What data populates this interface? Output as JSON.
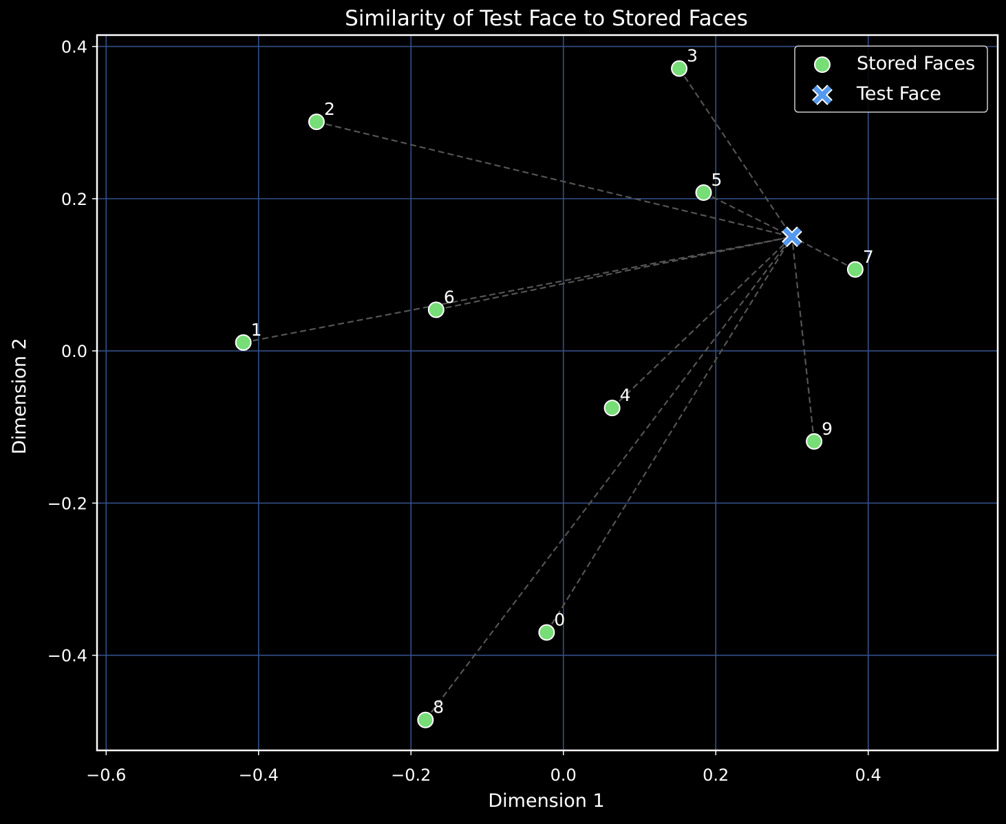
{
  "chart_data": {
    "type": "scatter",
    "title": "Similarity of Test Face to Stored Faces",
    "xlabel": "Dimension 1",
    "ylabel": "Dimension 2",
    "xlim": [
      -0.612,
      0.57
    ],
    "ylim": [
      -0.525,
      0.415
    ],
    "x_ticks": [
      -0.6,
      -0.4,
      -0.2,
      0.0,
      0.2,
      0.4
    ],
    "x_tick_labels": [
      "−0.6",
      "−0.4",
      "−0.2",
      "0.0",
      "0.2",
      "0.4"
    ],
    "y_ticks": [
      -0.4,
      -0.2,
      0.0,
      0.2,
      0.4
    ],
    "y_tick_labels": [
      "−0.4",
      "−0.2",
      "0.0",
      "0.2",
      "0.4"
    ],
    "grid": true,
    "legend_position": "top-right",
    "series": [
      {
        "name": "Stored Faces",
        "marker": "circle",
        "color": "#77dd77",
        "points": [
          {
            "label": "0",
            "x": -0.022,
            "y": -0.37
          },
          {
            "label": "1",
            "x": -0.42,
            "y": 0.011
          },
          {
            "label": "2",
            "x": -0.324,
            "y": 0.301
          },
          {
            "label": "3",
            "x": 0.152,
            "y": 0.371
          },
          {
            "label": "4",
            "x": 0.064,
            "y": -0.075
          },
          {
            "label": "5",
            "x": 0.184,
            "y": 0.208
          },
          {
            "label": "6",
            "x": -0.167,
            "y": 0.054
          },
          {
            "label": "7",
            "x": 0.383,
            "y": 0.107
          },
          {
            "label": "8",
            "x": -0.181,
            "y": -0.485
          },
          {
            "label": "9",
            "x": 0.329,
            "y": -0.119
          }
        ]
      },
      {
        "name": "Test Face",
        "marker": "x",
        "color": "#5599ee",
        "points": [
          {
            "label": "",
            "x": 0.3,
            "y": 0.15
          }
        ]
      }
    ],
    "connector_color": "#555555",
    "grid_color": "#34518a",
    "frame_color": "#ffffff"
  }
}
